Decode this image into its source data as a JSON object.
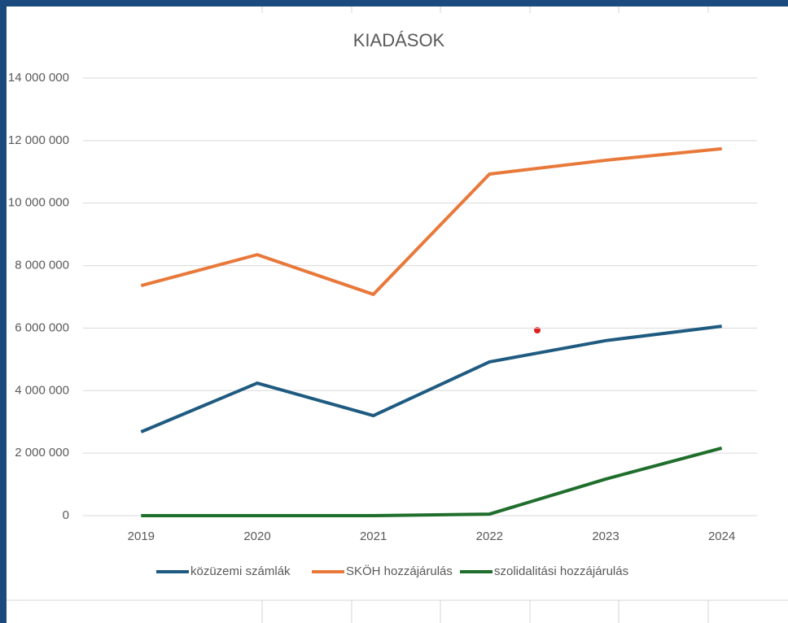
{
  "chart_data": {
    "type": "line",
    "title": "KIADÁSOK",
    "categories": [
      "2019",
      "2020",
      "2021",
      "2022",
      "2023",
      "2024"
    ],
    "series": [
      {
        "name": "közüzemi számlák",
        "color": "#1f5b80",
        "values": [
          2680000,
          4240000,
          3200000,
          4920000,
          5600000,
          6060000
        ]
      },
      {
        "name": "SKÖH hozzájárulás",
        "color": "#e8793a",
        "values": [
          7360000,
          8350000,
          7080000,
          10930000,
          11370000,
          11740000
        ]
      },
      {
        "name": "szolidalitási hozzájárulás",
        "color": "#1f6e2c",
        "values": [
          0,
          0,
          0,
          50000,
          1170000,
          2160000
        ]
      }
    ],
    "ylim": [
      0,
      14000000
    ],
    "yticks": [
      0,
      {
        "value": 2000000,
        "label": "2 000 000"
      },
      {
        "value": 4000000,
        "label": "4 000 000"
      },
      {
        "value": 6000000,
        "label": "6 000 000"
      },
      {
        "value": 8000000,
        "label": "8 000 000"
      },
      {
        "value": 10000000,
        "label": "10 000 000"
      },
      {
        "value": 12000000,
        "label": "12 000 000"
      },
      {
        "value": 14000000,
        "label": "14 000 000"
      }
    ],
    "grid": true,
    "legend": "bottom"
  }
}
